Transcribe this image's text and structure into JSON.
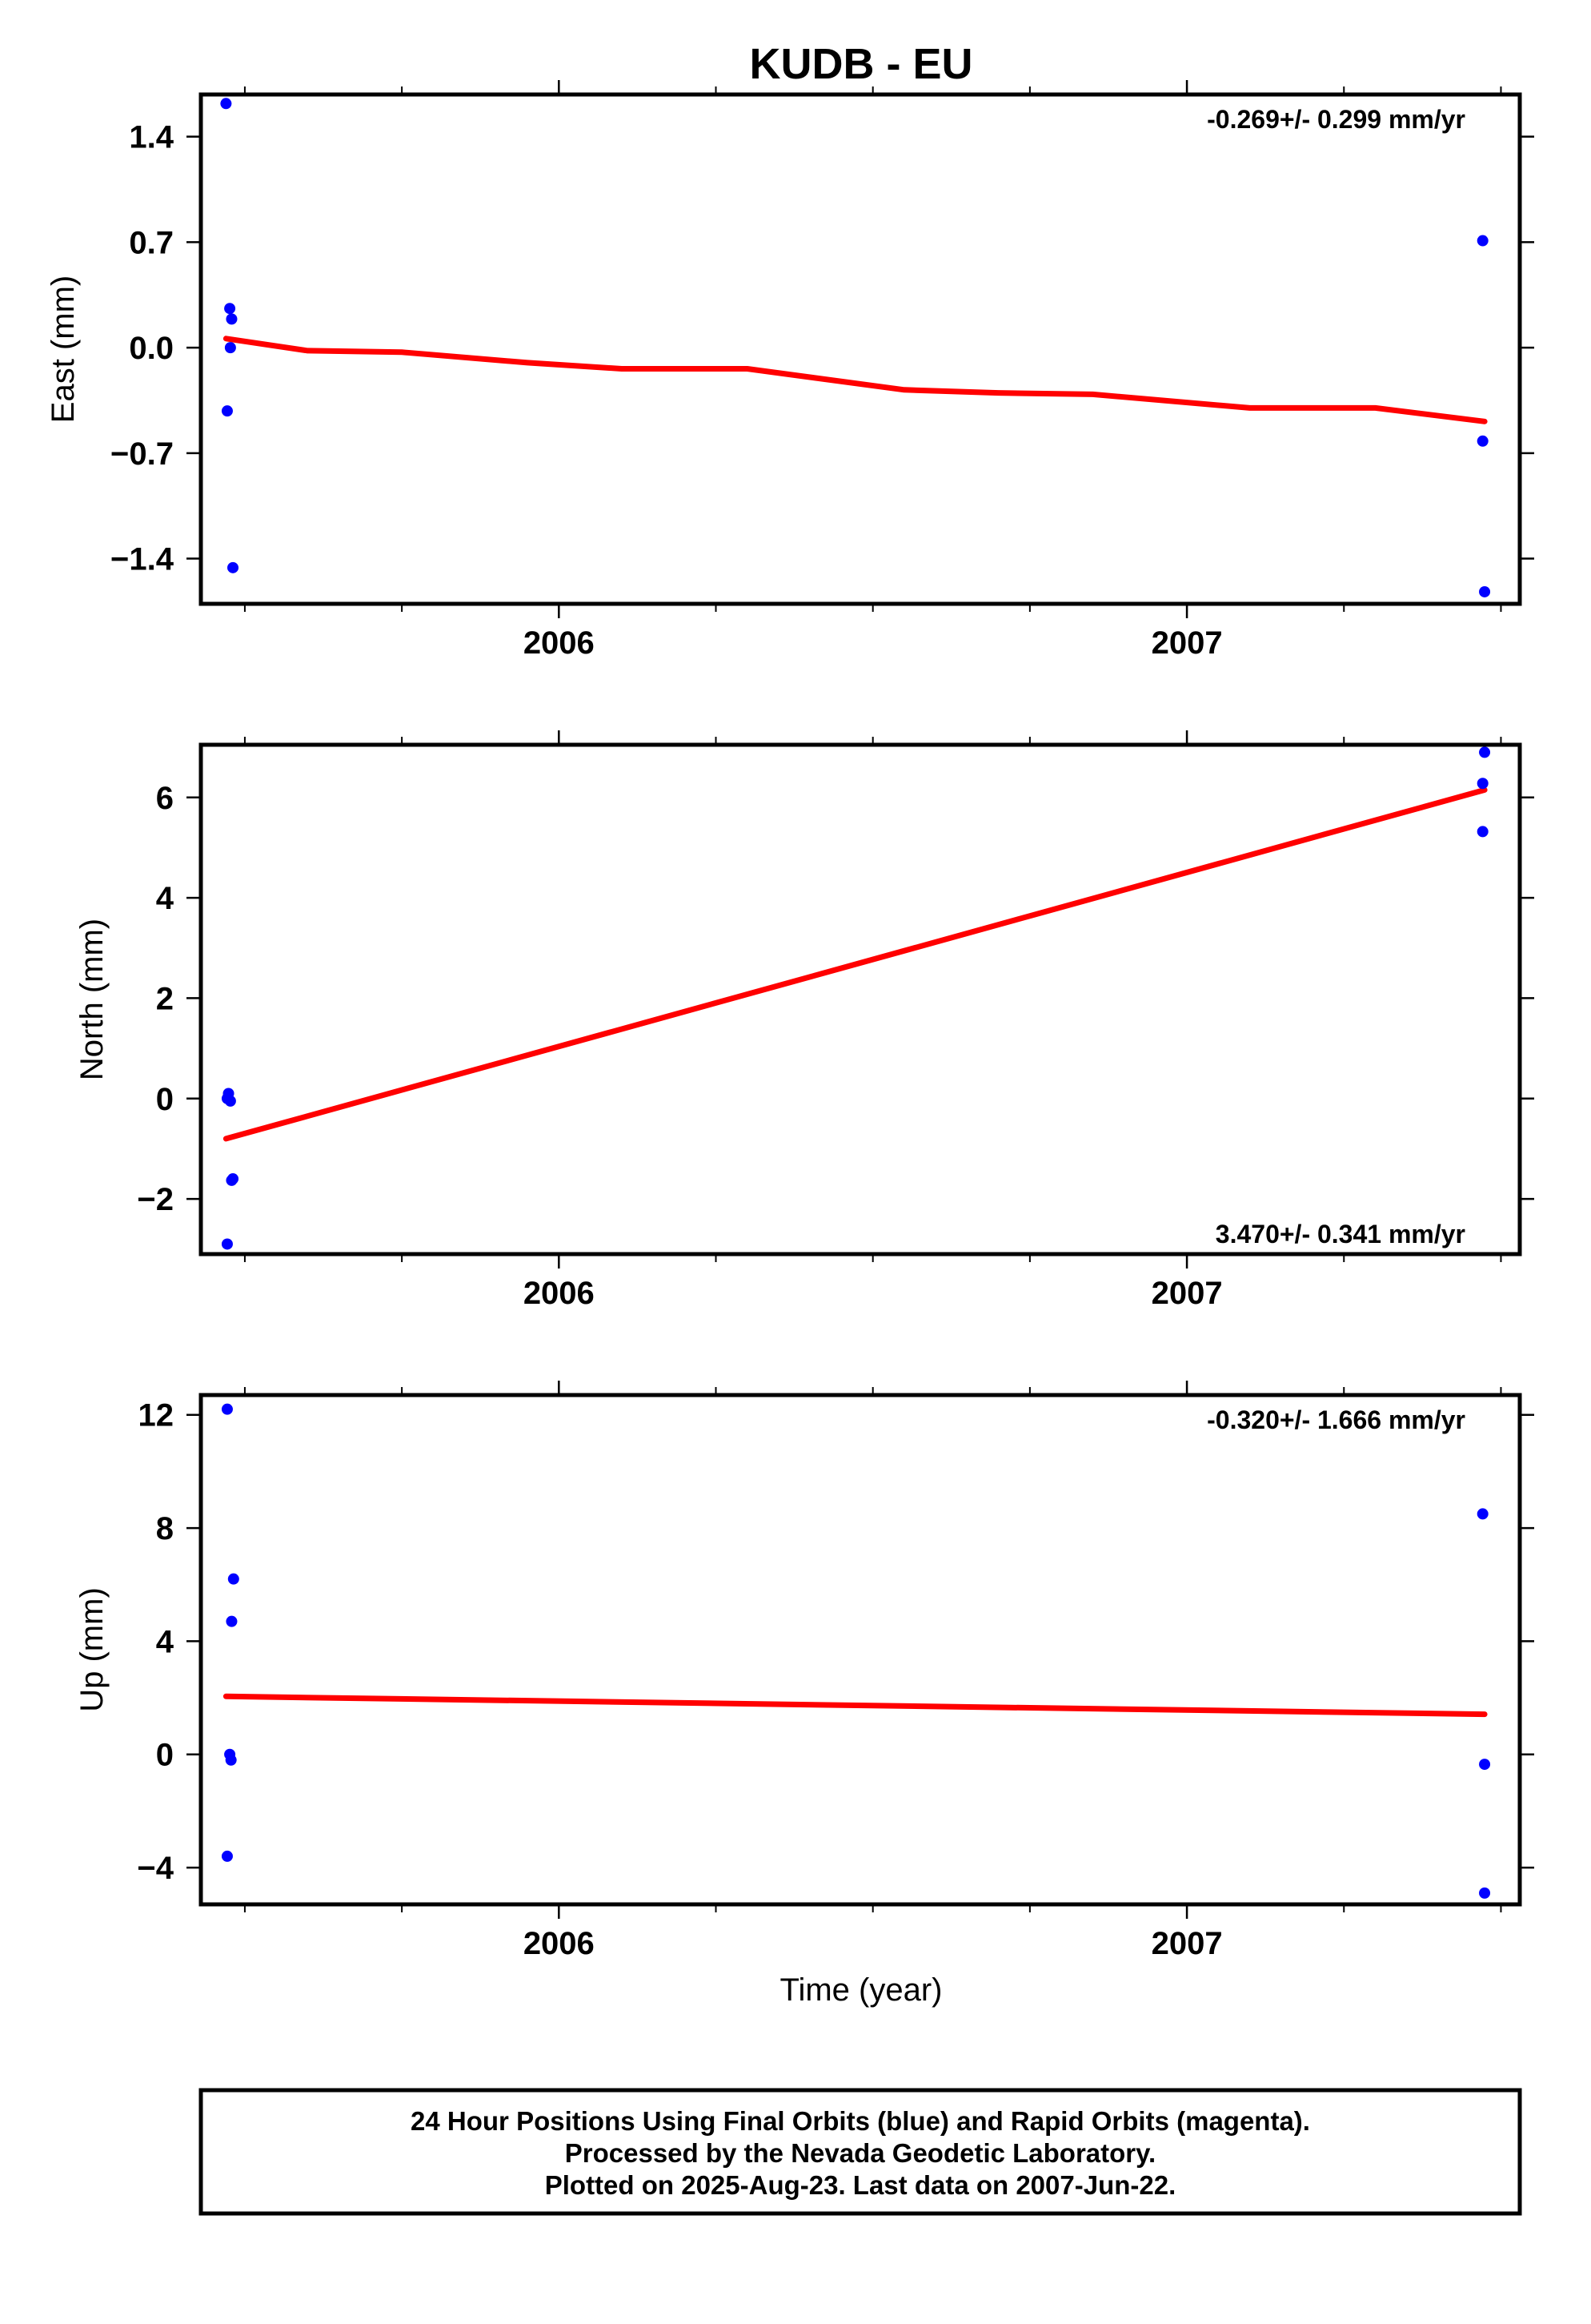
{
  "figure_title": "KUDB - EU",
  "x_axis_label": "Time (year)",
  "footer_lines": [
    "24 Hour Positions Using Final Orbits (blue) and Rapid Orbits (magenta).",
    "Processed by the Nevada Geodetic Laboratory.",
    "Plotted on 2025-Aug-23. Last data on 2007-Jun-22."
  ],
  "colors": {
    "points": "#0000ff",
    "fit": "#ff0000",
    "axes": "#000000"
  },
  "chart_data": [
    {
      "type": "scatter",
      "ylabel": "East (mm)",
      "rate_label": "-0.269+/- 0.299 mm/yr",
      "rate_position": "top-right",
      "xlim": [
        2005.43,
        2007.53
      ],
      "ylim": [
        -1.7,
        1.68
      ],
      "xticks": [
        2006,
        2007
      ],
      "xtick_labels": [
        "2006",
        "2007"
      ],
      "yticks": [
        1.4,
        0.7,
        0.0,
        -0.7,
        -1.4
      ],
      "ytick_labels": [
        "1.4",
        "0.7",
        "0.0",
        "−0.7",
        "−1.4"
      ],
      "points": [
        [
          2005.47,
          1.62
        ],
        [
          2005.476,
          0.26
        ],
        [
          2005.479,
          0.19
        ],
        [
          2005.477,
          0.0
        ],
        [
          2005.472,
          -0.42
        ],
        [
          2005.481,
          -1.46
        ],
        [
          2007.471,
          0.71
        ],
        [
          2007.471,
          -0.62
        ],
        [
          2007.474,
          -1.62
        ]
      ],
      "fit": [
        [
          2005.47,
          0.06
        ],
        [
          2005.6,
          -0.02
        ],
        [
          2005.75,
          -0.03
        ],
        [
          2005.95,
          -0.1
        ],
        [
          2006.1,
          -0.14
        ],
        [
          2006.3,
          -0.14
        ],
        [
          2006.55,
          -0.28
        ],
        [
          2006.7,
          -0.3
        ],
        [
          2006.85,
          -0.31
        ],
        [
          2007.1,
          -0.4
        ],
        [
          2007.3,
          -0.4
        ],
        [
          2007.474,
          -0.49
        ]
      ]
    },
    {
      "type": "scatter",
      "ylabel": "North (mm)",
      "rate_label": "3.470+/- 0.341 mm/yr",
      "rate_position": "bottom-right",
      "xlim": [
        2005.43,
        2007.53
      ],
      "ylim": [
        -3.1,
        7.05
      ],
      "xticks": [
        2006,
        2007
      ],
      "xtick_labels": [
        "2006",
        "2007"
      ],
      "yticks": [
        6,
        4,
        2,
        0,
        -2
      ],
      "ytick_labels": [
        "6",
        "4",
        "2",
        "0",
        "−2"
      ],
      "points": [
        [
          2005.474,
          0.1
        ],
        [
          2005.472,
          0.0
        ],
        [
          2005.477,
          -0.05
        ],
        [
          2005.481,
          -1.6
        ],
        [
          2005.479,
          -1.63
        ],
        [
          2005.472,
          -2.9
        ],
        [
          2007.474,
          6.9
        ],
        [
          2007.471,
          6.28
        ],
        [
          2007.471,
          5.32
        ]
      ],
      "fit": [
        [
          2005.47,
          -0.8
        ],
        [
          2007.474,
          6.15
        ]
      ]
    },
    {
      "type": "scatter",
      "ylabel": "Up (mm)",
      "rate_label": "-0.320+/- 1.666 mm/yr",
      "rate_position": "top-right",
      "xlim": [
        2005.43,
        2007.53
      ],
      "ylim": [
        -5.3,
        12.7
      ],
      "xticks": [
        2006,
        2007
      ],
      "xtick_labels": [
        "2006",
        "2007"
      ],
      "yticks": [
        12,
        8,
        4,
        0,
        -4
      ],
      "ytick_labels": [
        "12",
        "8",
        "4",
        "0",
        "−4"
      ],
      "points": [
        [
          2005.472,
          12.2
        ],
        [
          2005.482,
          6.2
        ],
        [
          2005.479,
          4.7
        ],
        [
          2005.476,
          0.0
        ],
        [
          2005.478,
          -0.2
        ],
        [
          2005.472,
          -3.6
        ],
        [
          2007.471,
          8.5
        ],
        [
          2007.474,
          -0.35
        ],
        [
          2007.474,
          -4.9
        ]
      ],
      "fit": [
        [
          2005.47,
          2.05
        ],
        [
          2007.474,
          1.42
        ]
      ]
    }
  ]
}
